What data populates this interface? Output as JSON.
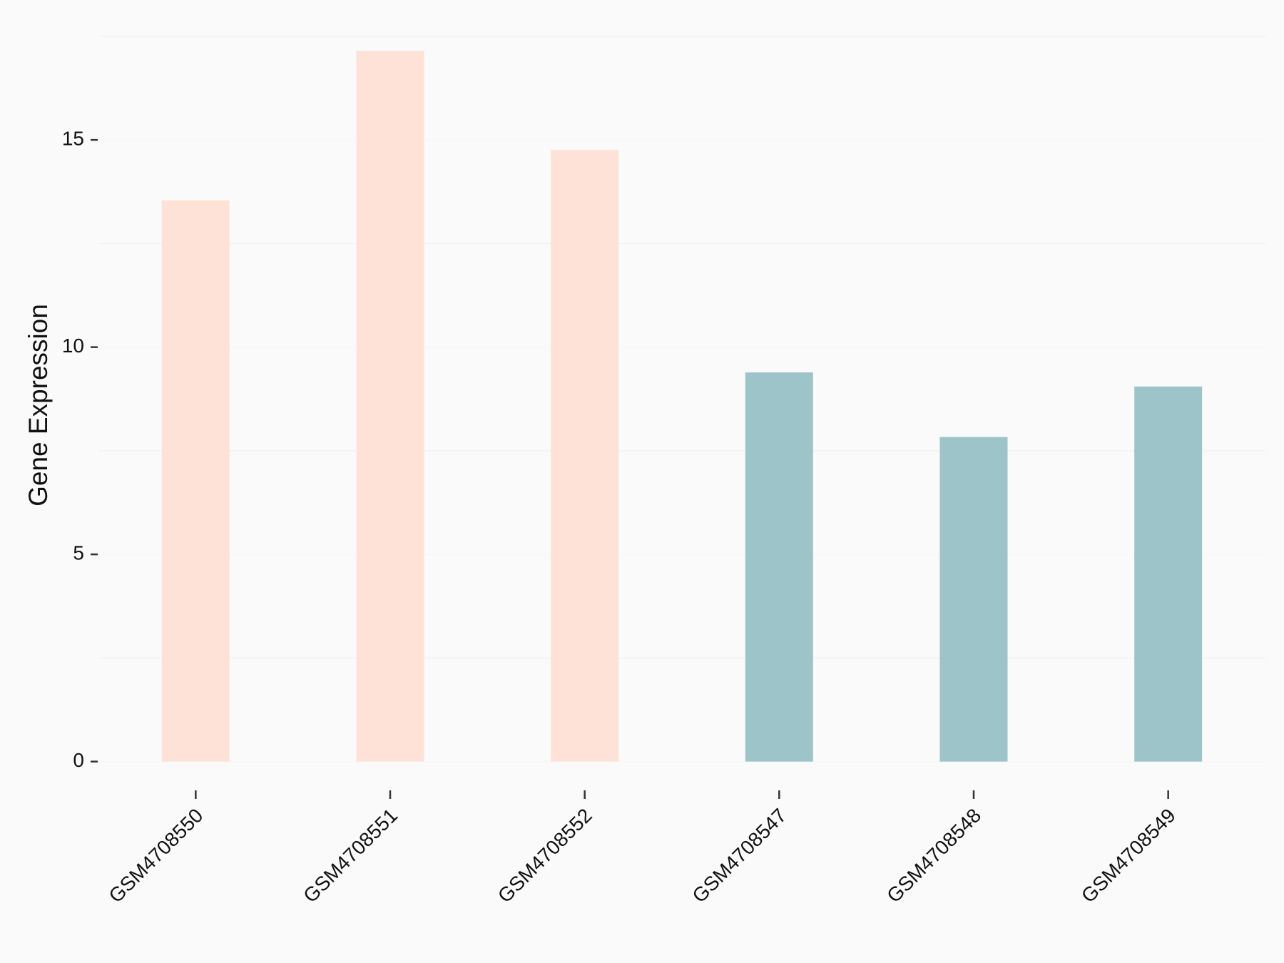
{
  "chart_data": {
    "type": "bar",
    "y_label": "Gene Expression",
    "categories": [
      "GSM4708550",
      "GSM4708551",
      "GSM4708552",
      "GSM4708547",
      "GSM4708548",
      "GSM4708549"
    ],
    "values": [
      13.54,
      17.15,
      14.76,
      9.39,
      7.83,
      9.05
    ],
    "colors": [
      "#fee2d8",
      "#fee2d8",
      "#fee2d8",
      "#9dc4c8",
      "#9dc4c8",
      "#9dc4c8"
    ],
    "ylim": [
      -0.7,
      18.2
    ],
    "yticks": [
      0,
      5,
      10,
      15
    ],
    "minor_yticks": [
      2.5,
      7.5,
      12.5,
      17.5
    ],
    "grid": true
  }
}
